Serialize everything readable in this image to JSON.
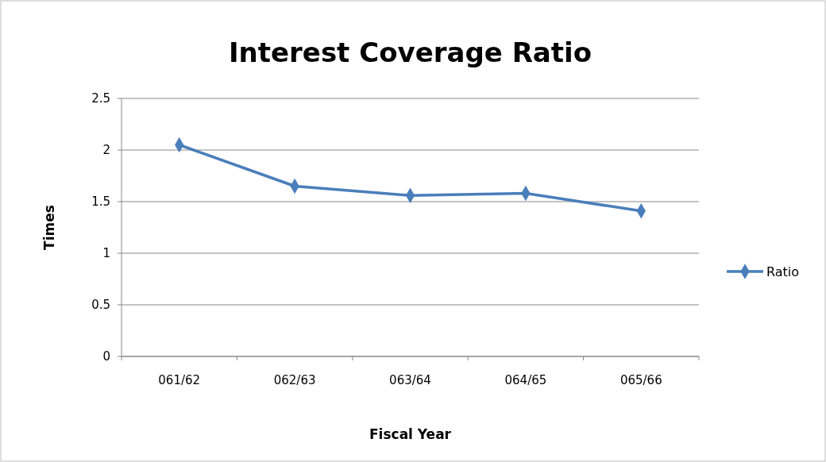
{
  "chart_data": {
    "type": "line",
    "title": "Interest Coverage Ratio",
    "xlabel": "Fiscal Year",
    "ylabel": "Times",
    "categories": [
      "061/62",
      "062/63",
      "063/64",
      "064/65",
      "065/66"
    ],
    "series": [
      {
        "name": "Ratio",
        "color": "#4a7ebb",
        "values": [
          2.05,
          1.65,
          1.56,
          1.58,
          1.41
        ]
      }
    ],
    "ylim": [
      0,
      2.5
    ],
    "yticks": [
      0,
      0.5,
      1,
      1.5,
      2,
      2.5
    ],
    "grid": "y",
    "legend": "right",
    "marker": "diamond",
    "line_style": "solid"
  }
}
